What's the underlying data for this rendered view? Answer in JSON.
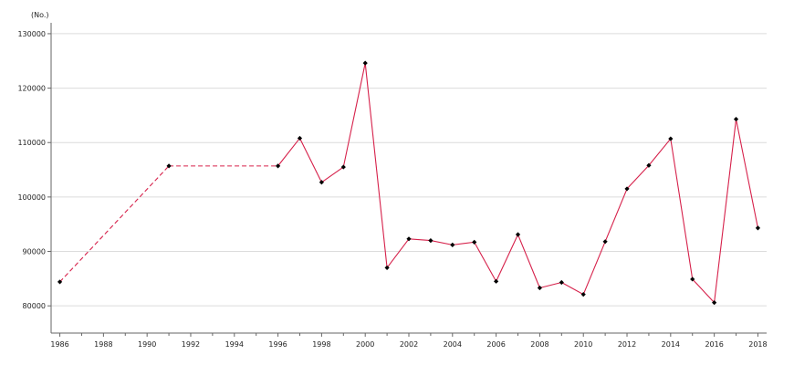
{
  "chart_data": {
    "type": "line",
    "unit_label": "(No.)",
    "ylim": [
      75000,
      132000
    ],
    "yticks": [
      80000,
      90000,
      100000,
      110000,
      120000,
      130000
    ],
    "ytick_labels": [
      "80000",
      "90000",
      "100000",
      "110000",
      "120000",
      "130000"
    ],
    "xlim": [
      1985.6,
      2018.4
    ],
    "xticks": [
      1986,
      1988,
      1990,
      1992,
      1994,
      1996,
      1998,
      2000,
      2002,
      2004,
      2006,
      2008,
      2010,
      2012,
      2014,
      2016,
      2018
    ],
    "xtick_labels": [
      "1986",
      "1988",
      "1990",
      "1992",
      "1994",
      "1996",
      "1998",
      "2000",
      "2002",
      "2004",
      "2006",
      "2008",
      "2010",
      "2012",
      "2014",
      "2016",
      "2018"
    ],
    "grid": true,
    "line_color": "#d6204a",
    "marker_color": "#000000",
    "dashed_gap_segments": [
      [
        1986,
        1991
      ],
      [
        1991,
        1996
      ]
    ],
    "x": [
      1986,
      1991,
      1996,
      1997,
      1998,
      1999,
      2000,
      2001,
      2002,
      2003,
      2004,
      2005,
      2006,
      2007,
      2008,
      2009,
      2010,
      2011,
      2012,
      2013,
      2014,
      2015,
      2016,
      2017,
      2018
    ],
    "y": [
      84400,
      105700,
      105700,
      110800,
      102700,
      105500,
      124600,
      87000,
      92300,
      92000,
      91200,
      91700,
      84500,
      93100,
      83300,
      84300,
      82100,
      91800,
      101500,
      105800,
      110700,
      84900,
      80600,
      114300,
      94300
    ]
  }
}
